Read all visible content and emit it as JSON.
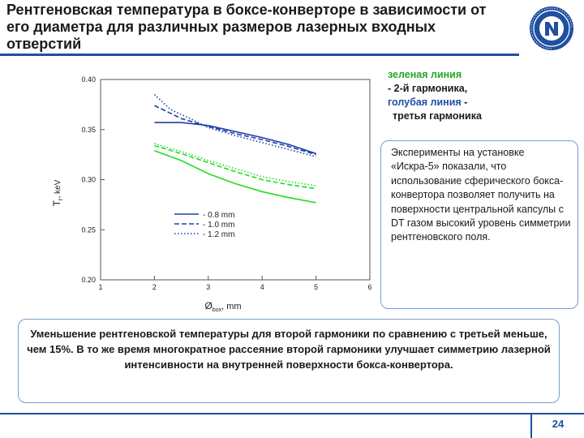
{
  "slide": {
    "title": "Рентгеновская температура в боксе-конверторе в зависимости от его диаметра для различных размеров лазерных входных отверстий",
    "green_line_label": "зеленая линия",
    "green_line_desc": "- 2-й гармоника,",
    "blue_line_label": "голубая линия",
    "blue_line_dash": "-",
    "blue_line_desc": "третья гармоника",
    "experiment_text": "Эксперименты на установке «Искра-5» показали, что использование сферического бокса-конвертора позволяет получить на поверхности центральной капсулы с DT газом высокий уровень симметрии рентгеновского поля.",
    "summary_text": "Уменьшение рентгеновской температуры для второй гармоники по сравнению с третьей меньше, чем 15%. В то же время многократное рассеяние второй гармоники улучшает симметрию лазерной интенсивности на внутренней поверхности бокса-конвертора.",
    "page_number": "24",
    "logo_icon": "institute-emblem-icon",
    "colors": {
      "accent": "#1f4fa0",
      "green": "#22dd22",
      "blue": "#1f3fa8",
      "box_border": "#7a9cc8"
    }
  },
  "chart_data": {
    "type": "line",
    "xlabel": "Ø",
    "xlabel_sub": "box",
    "xlabel_unit": ", mm",
    "ylabel": "T",
    "ylabel_sub": "r",
    "ylabel_unit": ", keV",
    "xlim": [
      1,
      6
    ],
    "ylim": [
      0.2,
      0.4
    ],
    "xticks": [
      "1",
      "2",
      "3",
      "4",
      "5",
      "6"
    ],
    "yticks": [
      "0.20",
      "0.25",
      "0.30",
      "0.35",
      "0.40"
    ],
    "legend": [
      {
        "label": "0.8 mm",
        "style": "solid"
      },
      {
        "label": "1.0 mm",
        "style": "dashed"
      },
      {
        "label": "1.2 mm",
        "style": "dotted"
      }
    ],
    "series": [
      {
        "group": "blue",
        "style": "solid",
        "color": "#1f3fa8",
        "x": [
          2,
          2.5,
          3,
          3.5,
          4,
          4.5,
          5
        ],
        "y": [
          0.357,
          0.357,
          0.354,
          0.348,
          0.342,
          0.335,
          0.326
        ]
      },
      {
        "group": "blue",
        "style": "dashed",
        "color": "#1f3fa8",
        "x": [
          2,
          2.5,
          3,
          3.5,
          4,
          4.5,
          5
        ],
        "y": [
          0.374,
          0.361,
          0.353,
          0.346,
          0.34,
          0.333,
          0.325
        ]
      },
      {
        "group": "blue",
        "style": "dotted",
        "color": "#1f3fa8",
        "x": [
          2,
          2.3,
          2.7,
          3,
          3.5,
          4,
          4.5,
          5
        ],
        "y": [
          0.385,
          0.37,
          0.36,
          0.352,
          0.344,
          0.337,
          0.33,
          0.323
        ]
      },
      {
        "group": "green",
        "style": "solid",
        "color": "#22dd22",
        "x": [
          2,
          2.5,
          3,
          3.5,
          4,
          4.5,
          5
        ],
        "y": [
          0.329,
          0.319,
          0.306,
          0.296,
          0.288,
          0.282,
          0.277
        ]
      },
      {
        "group": "green",
        "style": "dashed",
        "color": "#22dd22",
        "x": [
          2,
          2.5,
          3,
          3.5,
          4,
          4.5,
          5
        ],
        "y": [
          0.334,
          0.326,
          0.317,
          0.308,
          0.3,
          0.295,
          0.291
        ]
      },
      {
        "group": "green",
        "style": "dotted",
        "color": "#22dd22",
        "x": [
          2,
          2.5,
          3,
          3.5,
          4,
          4.5,
          5
        ],
        "y": [
          0.336,
          0.328,
          0.319,
          0.311,
          0.303,
          0.298,
          0.294
        ]
      }
    ]
  }
}
